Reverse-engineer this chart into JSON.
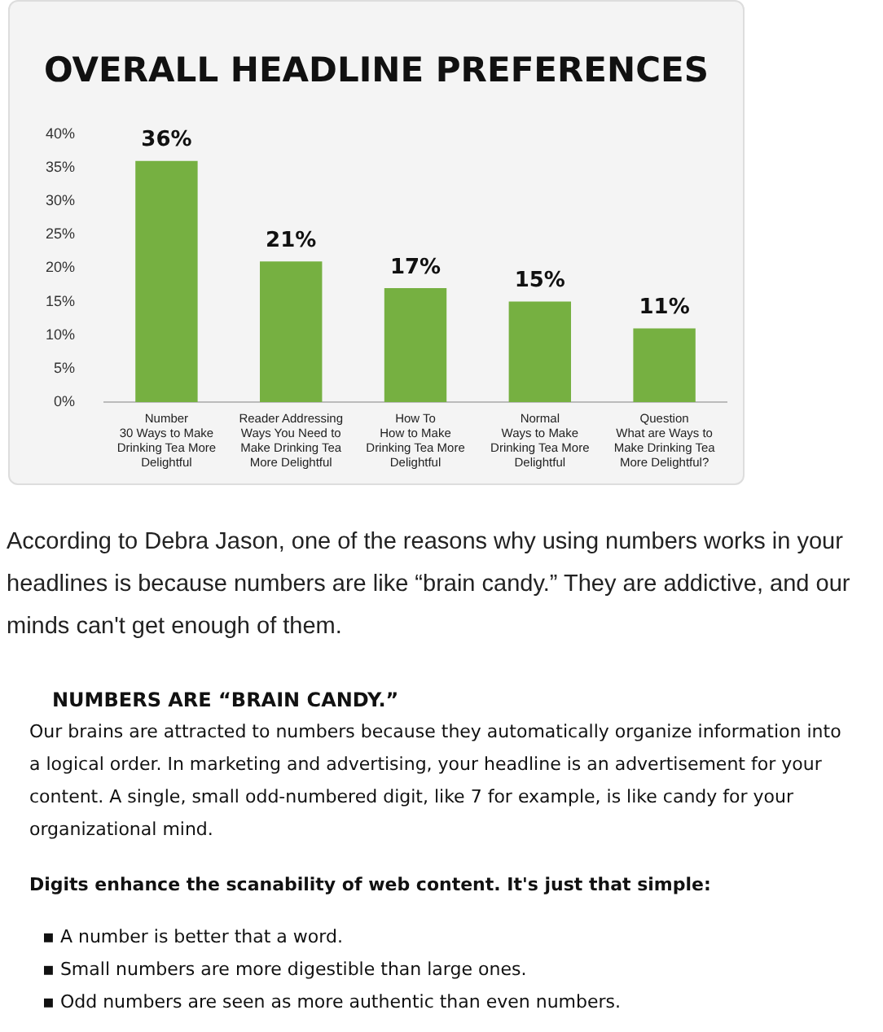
{
  "chart_data": {
    "type": "bar",
    "title": "OVERALL HEADLINE PREFERENCES",
    "categories": [
      "Number\n30 Ways to Make\nDrinking Tea More\nDelightful",
      "Reader Addressing\nWays You Need to\nMake Drinking Tea\nMore Delightful",
      "How To\nHow to Make\nDrinking Tea More\nDelightful",
      "Normal\nWays to Make\nDrinking Tea More\nDelightful",
      "Question\nWhat are Ways to\nMake Drinking Tea\nMore Delightful?"
    ],
    "values": [
      36,
      21,
      17,
      15,
      11
    ],
    "color": "#76b041",
    "value_labels": [
      "36%",
      "21%",
      "17%",
      "15%",
      "11%"
    ],
    "ylim": [
      0,
      40
    ],
    "yticks": [
      {
        "value": 0,
        "label": "0%"
      },
      {
        "value": 5,
        "label": "5%"
      },
      {
        "value": 10,
        "label": "10%"
      },
      {
        "value": 15,
        "label": "15%"
      },
      {
        "value": 20,
        "label": "20%"
      },
      {
        "value": 25,
        "label": "25%"
      },
      {
        "value": 30,
        "label": "30%"
      },
      {
        "value": 35,
        "label": "35%"
      },
      {
        "value": 40,
        "label": "40%"
      }
    ],
    "grid": false,
    "legend": false,
    "annotations": [
      "According to Debra Jason, one of the reasons why using numbers works in your headlines is because numbers are like “brain candy.” They are addictive, and our minds can't get enough of them.",
      "NUMBERS ARE “BRAIN CANDY.”",
      "Our brains are attracted to numbers because they automatically organize information into a logical order. In marketing and advertising, your headline is an advertisement for your content. A single, small odd-numbered digit, like 7 for example, is like candy for your organizational mind.",
      "Digits enhance the scanability of web content. It's just that simple:",
      "▪ A number is better that a word.",
      "▪ Small numbers are more digestible than large ones.",
      "▪ Odd numbers are seen as more authentic than even numbers."
    ]
  }
}
